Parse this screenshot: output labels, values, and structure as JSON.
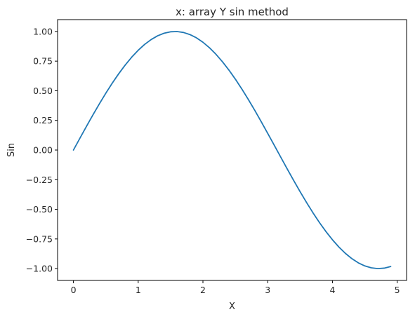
{
  "chart_data": {
    "type": "line",
    "title": "x: array Y sin method",
    "xlabel": "X",
    "ylabel": "Sin",
    "xlim": [
      -0.245,
      5.145
    ],
    "ylim": [
      -1.1,
      1.1
    ],
    "x_ticks": [
      0,
      1,
      2,
      3,
      4,
      5
    ],
    "x_tick_labels": [
      "0",
      "1",
      "2",
      "3",
      "4",
      "5"
    ],
    "y_ticks": [
      1.0,
      0.75,
      0.5,
      0.25,
      0.0,
      -0.25,
      -0.5,
      -0.75,
      -1.0
    ],
    "y_tick_labels": [
      "1.00",
      "0.75",
      "0.50",
      "0.25",
      "0.00",
      "−0.25",
      "−0.50",
      "−0.75",
      "−1.00"
    ],
    "grid": false,
    "legend": "none",
    "series": [
      {
        "color": "#1f77b4",
        "x": [
          0,
          0.1,
          0.2,
          0.3,
          0.4,
          0.5,
          0.6,
          0.7,
          0.8,
          0.9,
          1.0,
          1.1,
          1.2,
          1.3,
          1.4,
          1.5,
          1.6,
          1.7,
          1.8,
          1.9,
          2.0,
          2.1,
          2.2,
          2.3,
          2.4,
          2.5,
          2.6,
          2.7,
          2.8,
          2.9,
          3.0,
          3.1,
          3.2,
          3.3,
          3.4,
          3.5,
          3.6,
          3.7,
          3.8,
          3.9,
          4.0,
          4.1,
          4.2,
          4.3,
          4.4,
          4.5,
          4.6,
          4.7,
          4.8,
          4.9
        ],
        "y": [
          0.0,
          0.0998,
          0.1987,
          0.2955,
          0.3894,
          0.4794,
          0.5646,
          0.6442,
          0.7174,
          0.7833,
          0.8415,
          0.8912,
          0.932,
          0.9636,
          0.9854,
          0.9975,
          0.9996,
          0.9917,
          0.9738,
          0.9463,
          0.9093,
          0.8632,
          0.8085,
          0.7457,
          0.6755,
          0.5985,
          0.5155,
          0.4274,
          0.335,
          0.2392,
          0.1411,
          0.0416,
          -0.0584,
          -0.1577,
          -0.2555,
          -0.3508,
          -0.4425,
          -0.5298,
          -0.6119,
          -0.6878,
          -0.7568,
          -0.8183,
          -0.8716,
          -0.9162,
          -0.9516,
          -0.9775,
          -0.9937,
          -1.0,
          -0.9962,
          -0.9825
        ]
      }
    ]
  }
}
